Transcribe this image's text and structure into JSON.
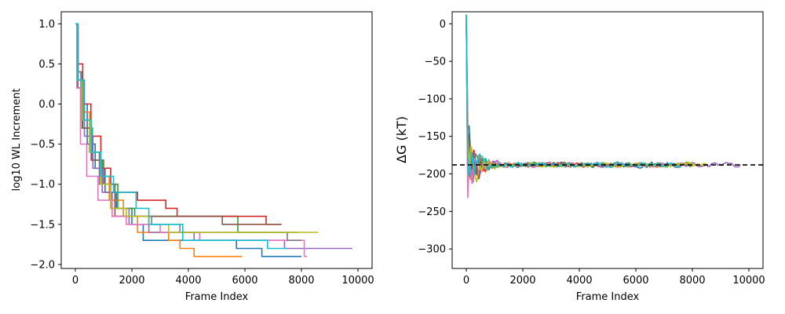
{
  "chart_data": [
    {
      "type": "line",
      "title": "",
      "xlabel": "Frame Index",
      "ylabel": "log10 WL Increment",
      "xlim": [
        -500,
        10500
      ],
      "ylim": [
        -2.05,
        1.15
      ],
      "xticks": [
        0,
        2000,
        4000,
        6000,
        8000,
        10000
      ],
      "yticks": [
        1.0,
        0.5,
        0.0,
        -0.5,
        -1.0,
        -1.5,
        -2.0
      ],
      "ytick_labels": [
        "1.0",
        "0.5",
        "0.0",
        "−0.5",
        "−1.0",
        "−1.5",
        "−2.0"
      ],
      "grid": false,
      "legend": "none",
      "step": true,
      "series": [
        {
          "color": "#1f77b4",
          "values": [
            [
              0,
              1.0
            ],
            [
              80,
              0.4
            ],
            [
              200,
              0.0
            ],
            [
              420,
              -0.5
            ],
            [
              700,
              -0.8
            ],
            [
              1050,
              -1.1
            ],
            [
              1450,
              -1.3
            ],
            [
              2000,
              -1.5
            ],
            [
              2400,
              -1.7
            ],
            [
              5700,
              -1.8
            ],
            [
              6600,
              -1.9
            ],
            [
              8000,
              -1.9
            ]
          ]
        },
        {
          "color": "#ff7f0e",
          "values": [
            [
              0,
              1.0
            ],
            [
              90,
              0.4
            ],
            [
              250,
              -0.1
            ],
            [
              500,
              -0.6
            ],
            [
              850,
              -0.9
            ],
            [
              1200,
              -1.2
            ],
            [
              1700,
              -1.4
            ],
            [
              2200,
              -1.6
            ],
            [
              3300,
              -1.7
            ],
            [
              3700,
              -1.8
            ],
            [
              4200,
              -1.9
            ],
            [
              5900,
              -1.9
            ]
          ]
        },
        {
          "color": "#2ca02c",
          "values": [
            [
              0,
              1.0
            ],
            [
              70,
              0.3
            ],
            [
              240,
              -0.3
            ],
            [
              600,
              -0.7
            ],
            [
              950,
              -1.0
            ],
            [
              1500,
              -1.3
            ],
            [
              2100,
              -1.4
            ],
            [
              5750,
              -1.4
            ],
            [
              5750,
              -1.6
            ],
            [
              7900,
              -1.6
            ]
          ]
        },
        {
          "color": "#d62728",
          "values": [
            [
              0,
              1.0
            ],
            [
              60,
              0.5
            ],
            [
              260,
              0.0
            ],
            [
              550,
              -0.4
            ],
            [
              900,
              -0.8
            ],
            [
              1250,
              -1.1
            ],
            [
              2200,
              -1.2
            ],
            [
              3200,
              -1.3
            ],
            [
              3600,
              -1.4
            ],
            [
              6750,
              -1.4
            ],
            [
              6750,
              -1.5
            ],
            [
              7200,
              -1.5
            ]
          ]
        },
        {
          "color": "#9467bd",
          "values": [
            [
              0,
              1.0
            ],
            [
              100,
              0.3
            ],
            [
              320,
              -0.4
            ],
            [
              620,
              -0.8
            ],
            [
              950,
              -1.1
            ],
            [
              1300,
              -1.4
            ],
            [
              1900,
              -1.5
            ],
            [
              2600,
              -1.6
            ],
            [
              4200,
              -1.7
            ],
            [
              7400,
              -1.8
            ],
            [
              9800,
              -1.8
            ]
          ]
        },
        {
          "color": "#8c564b",
          "values": [
            [
              0,
              1.0
            ],
            [
              90,
              0.2
            ],
            [
              260,
              -0.3
            ],
            [
              560,
              -0.7
            ],
            [
              1000,
              -1.0
            ],
            [
              1400,
              -1.4
            ],
            [
              5200,
              -1.5
            ],
            [
              7300,
              -1.5
            ]
          ]
        },
        {
          "color": "#e377c2",
          "values": [
            [
              0,
              1.0
            ],
            [
              50,
              0.2
            ],
            [
              180,
              -0.5
            ],
            [
              400,
              -0.9
            ],
            [
              800,
              -1.2
            ],
            [
              1300,
              -1.4
            ],
            [
              1800,
              -1.5
            ],
            [
              3000,
              -1.6
            ],
            [
              4400,
              -1.7
            ],
            [
              8100,
              -1.9
            ],
            [
              8200,
              -1.9
            ]
          ]
        },
        {
          "color": "#7f7f7f",
          "values": [
            [
              0,
              1.0
            ],
            [
              60,
              0.4
            ],
            [
              220,
              -0.2
            ],
            [
              520,
              -0.6
            ],
            [
              850,
              -1.0
            ],
            [
              1250,
              -1.3
            ],
            [
              1900,
              -1.4
            ],
            [
              2700,
              -1.5
            ],
            [
              3700,
              -1.6
            ],
            [
              7500,
              -1.7
            ],
            [
              8000,
              -1.7
            ]
          ]
        },
        {
          "color": "#bcbd22",
          "values": [
            [
              0,
              1.0
            ],
            [
              70,
              0.3
            ],
            [
              230,
              -0.2
            ],
            [
              520,
              -0.6
            ],
            [
              900,
              -1.0
            ],
            [
              1250,
              -1.3
            ],
            [
              1800,
              -1.4
            ],
            [
              2600,
              -1.5
            ],
            [
              3300,
              -1.6
            ],
            [
              8600,
              -1.6
            ]
          ]
        },
        {
          "color": "#17becf",
          "values": [
            [
              0,
              1.0
            ],
            [
              80,
              0.3
            ],
            [
              280,
              -0.2
            ],
            [
              560,
              -0.6
            ],
            [
              900,
              -0.9
            ],
            [
              1350,
              -1.1
            ],
            [
              2150,
              -1.3
            ],
            [
              2600,
              -1.5
            ],
            [
              3800,
              -1.7
            ],
            [
              6800,
              -1.8
            ],
            [
              7500,
              -1.8
            ]
          ]
        }
      ]
    },
    {
      "type": "line",
      "title": "",
      "xlabel": "Frame Index",
      "ylabel": "ΔG (kT)",
      "xlim": [
        -500,
        10500
      ],
      "ylim": [
        -326,
        16
      ],
      "xticks": [
        0,
        2000,
        4000,
        6000,
        8000,
        10000
      ],
      "yticks": [
        0,
        -50,
        -100,
        -150,
        -200,
        -250,
        -300
      ],
      "ytick_labels": [
        "0",
        "−50",
        "−100",
        "−150",
        "−200",
        "−250",
        "−300"
      ],
      "grid": false,
      "legend": "none",
      "reference_line": {
        "y": -188,
        "style": "dashed",
        "color": "#000000"
      },
      "series": [
        {
          "color": "#1f77b4",
          "seed": 11,
          "end": 7900
        },
        {
          "color": "#ff7f0e",
          "seed": 23,
          "end": 7800
        },
        {
          "color": "#2ca02c",
          "seed": 37,
          "end": 8000
        },
        {
          "color": "#d62728",
          "seed": 41,
          "end": 7200
        },
        {
          "color": "#9467bd",
          "seed": 53,
          "end": 9700
        },
        {
          "color": "#8c564b",
          "seed": 61,
          "end": 7300
        },
        {
          "color": "#e377c2",
          "seed": 71,
          "end": 8200
        },
        {
          "color": "#7f7f7f",
          "seed": 83,
          "end": 7800
        },
        {
          "color": "#bcbd22",
          "seed": 97,
          "end": 8500
        },
        {
          "color": "#17becf",
          "seed": 101,
          "end": 7600
        }
      ]
    }
  ]
}
